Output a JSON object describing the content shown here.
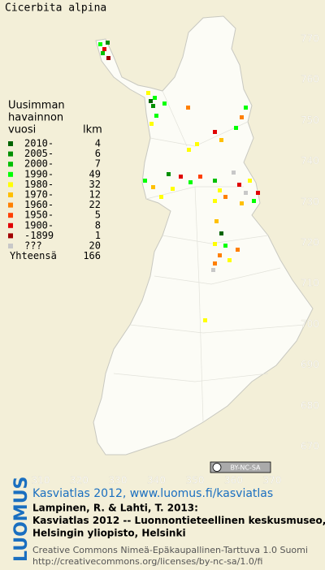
{
  "title": "Cicerbita alpina",
  "legend": {
    "heading": [
      "Uusimman",
      "havainnon",
      "vuosi"
    ],
    "count_heading": "lkm",
    "rows": [
      {
        "label": "2010-",
        "count": 4,
        "color": "#006400"
      },
      {
        "label": "2005-",
        "count": 6,
        "color": "#009000"
      },
      {
        "label": "2000-",
        "count": 7,
        "color": "#00c000"
      },
      {
        "label": "1990-",
        "count": 49,
        "color": "#00ff00"
      },
      {
        "label": "1980-",
        "count": 32,
        "color": "#ffff00"
      },
      {
        "label": "1970-",
        "count": 12,
        "color": "#ffc000"
      },
      {
        "label": "1960-",
        "count": 22,
        "color": "#ff8000"
      },
      {
        "label": "1950-",
        "count": 5,
        "color": "#ff4000"
      },
      {
        "label": "1900-",
        "count": 8,
        "color": "#e00000"
      },
      {
        "label": "-1899",
        "count": 1,
        "color": "#a00000"
      },
      {
        "label": "???",
        "count": 20,
        "color": "#c8c8c8"
      }
    ],
    "total_label": "Yhteensä",
    "total": 166
  },
  "map": {
    "north_labels": [
      770,
      760,
      750,
      740,
      730,
      720,
      710,
      700,
      690,
      680,
      670
    ],
    "east_labels": [
      310,
      320,
      330,
      340,
      350,
      360,
      370
    ]
  },
  "license_badge": "BY-NC-SA",
  "footer": {
    "logo": "LUOMUS",
    "headline": "Kasviatlas 2012, www.luomus.fi/kasviatlas",
    "lines": [
      "Lampinen, R. & Lahti, T. 2013:",
      "Kasviatlas 2012 -- Luonnontieteellinen keskusmuseo,",
      "Helsingin yliopisto, Helsinki"
    ],
    "license_lines": [
      "Creative Commons Nimeä-Epäkaupallinen-Tarttuva 1.0 Suomi",
      "http://creativecommons.org/licenses/by-nc-sa/1.0/fi"
    ]
  }
}
